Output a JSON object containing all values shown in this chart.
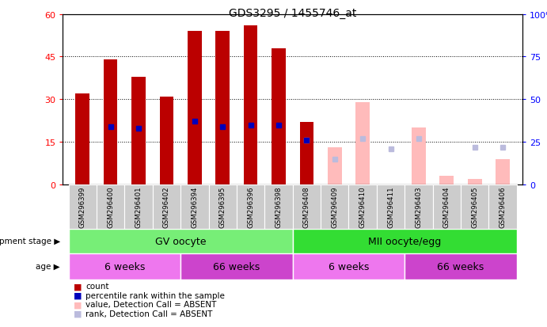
{
  "title": "GDS3295 / 1455746_at",
  "samples": [
    "GSM296399",
    "GSM296400",
    "GSM296401",
    "GSM296402",
    "GSM296394",
    "GSM296395",
    "GSM296396",
    "GSM296398",
    "GSM296408",
    "GSM296409",
    "GSM296410",
    "GSM296411",
    "GSM296403",
    "GSM296404",
    "GSM296405",
    "GSM296406"
  ],
  "count_values": [
    32,
    44,
    38,
    31,
    54,
    54,
    56,
    48,
    22,
    null,
    null,
    null,
    null,
    null,
    null,
    null
  ],
  "rank_values": [
    null,
    34,
    33,
    null,
    37,
    34,
    35,
    35,
    null,
    null,
    null,
    null,
    null,
    null,
    null,
    null
  ],
  "absent_value": [
    null,
    null,
    null,
    null,
    null,
    null,
    null,
    null,
    null,
    13,
    29,
    null,
    20,
    3,
    2,
    9
  ],
  "absent_rank": [
    null,
    null,
    null,
    null,
    null,
    null,
    null,
    null,
    26,
    15,
    27,
    21,
    27,
    null,
    22,
    22
  ],
  "present_rank_408": 26,
  "ylim_left": [
    0,
    60
  ],
  "ylim_right": [
    0,
    100
  ],
  "yticks_left": [
    0,
    15,
    30,
    45,
    60
  ],
  "yticks_right": [
    0,
    25,
    50,
    75,
    100
  ],
  "count_color": "#bb0000",
  "rank_color": "#0000bb",
  "absent_value_color": "#ffbbbb",
  "absent_rank_color": "#bbbbdd",
  "gv_oocyte_color": "#77ee77",
  "mii_oocyte_color": "#33dd33",
  "age_6weeks_color": "#ee77ee",
  "age_66weeks_color": "#cc44cc",
  "label_dev": "development stage",
  "label_age": "age",
  "legend": [
    {
      "color": "#bb0000",
      "label": "count"
    },
    {
      "color": "#0000bb",
      "label": "percentile rank within the sample"
    },
    {
      "color": "#ffbbbb",
      "label": "value, Detection Call = ABSENT"
    },
    {
      "color": "#bbbbdd",
      "label": "rank, Detection Call = ABSENT"
    }
  ]
}
